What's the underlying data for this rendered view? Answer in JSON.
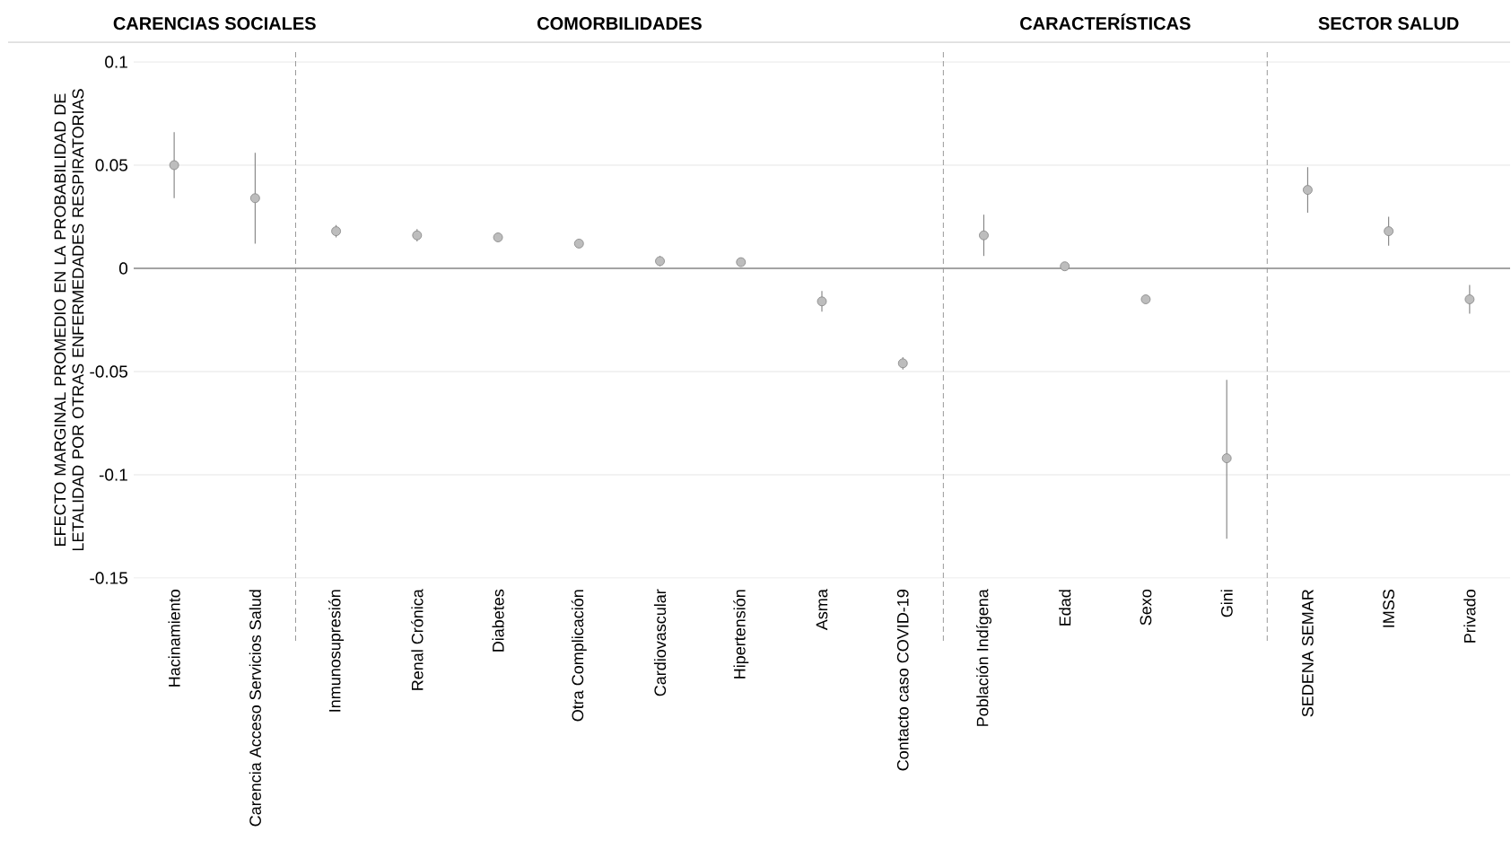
{
  "chart_data": {
    "type": "scatter",
    "ylabel": "EFECTO MARGINAL  PROMEDIO EN LA PROBABILIDAD DE LETALIDAD POR OTRAS ENFERMEDADES RESPIRATORIAS",
    "annotations": [
      "CARENCIAS SOCIALES",
      "COMORBILIDADES",
      "CARACTERÍSTICAS",
      "SECTOR SALUD"
    ],
    "categories": [
      "Hacinamiento",
      "Carencia Acceso Servicios Salud",
      "Inmunosupresión",
      "Renal Crónica",
      "Diabetes",
      "Otra Complicación",
      "Cardiovascular",
      "Hipertensión",
      "Asma",
      "Contacto caso COVID-19",
      "Población Indígena",
      "Edad",
      "Sexo",
      "Gini",
      "SEDENA SEMAR",
      "IMSS",
      "Privado"
    ],
    "values": [
      0.05,
      0.034,
      0.018,
      0.016,
      0.015,
      0.012,
      0.0035,
      0.003,
      -0.016,
      -0.046,
      0.016,
      0.001,
      -0.015,
      -0.092,
      0.038,
      0.018,
      -0.015
    ],
    "errors": [
      [
        0.034,
        0.066
      ],
      [
        0.012,
        0.056
      ],
      [
        0.015,
        0.021
      ],
      [
        0.013,
        0.019
      ],
      null,
      [
        0.01,
        0.014
      ],
      [
        0.001,
        0.006
      ],
      null,
      [
        -0.021,
        -0.011
      ],
      [
        -0.049,
        -0.043
      ],
      [
        0.006,
        0.026
      ],
      null,
      null,
      [
        -0.131,
        -0.054
      ],
      [
        0.027,
        0.049
      ],
      [
        0.011,
        0.025
      ],
      [
        -0.022,
        -0.008
      ]
    ],
    "color": "#bdbdbd",
    "marker": "circle",
    "ylim": [
      -0.15,
      0.1
    ],
    "yticks": [
      -0.15,
      -0.1,
      -0.05,
      0,
      0.05,
      0.1
    ],
    "grid": "y",
    "ref_lines": [
      {
        "axis": "y",
        "value": 0,
        "color": "#555555",
        "line_style": "solid"
      }
    ]
  }
}
